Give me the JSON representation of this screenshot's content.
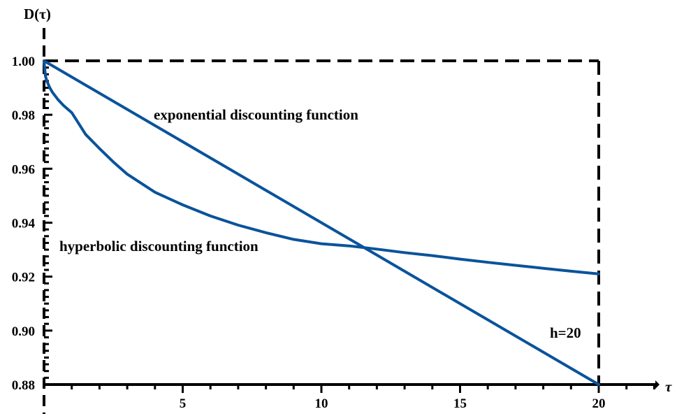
{
  "chart_data": {
    "type": "line",
    "xlabel": "τ",
    "ylabel": "D(τ)",
    "xlim": [
      0,
      22
    ],
    "ylim": [
      0.88,
      1.0
    ],
    "xticks": [
      5,
      10,
      15,
      20
    ],
    "xtick_labels": [
      "5",
      "10",
      "15",
      "20"
    ],
    "yticks": [
      0.88,
      0.9,
      0.92,
      0.94,
      0.96,
      0.98,
      1.0
    ],
    "ytick_labels": [
      "0.88",
      "0.90",
      "0.92",
      "0.94",
      "0.96",
      "0.98",
      "1.00"
    ],
    "grid": false,
    "color": "#0a539b",
    "series": [
      {
        "key": "exponential",
        "x": [
          0,
          20
        ],
        "y": [
          1.0,
          0.88
        ]
      },
      {
        "key": "hyperbolic",
        "x": [
          0,
          0.05,
          0.1,
          0.2,
          0.3,
          0.5,
          0.7,
          1,
          1.5,
          2,
          2.5,
          3,
          4,
          5,
          6,
          7,
          8,
          9,
          10,
          11,
          12,
          13,
          14,
          15,
          16,
          17,
          18,
          19,
          20
        ],
        "y": [
          1.0,
          0.9944,
          0.9926,
          0.9902,
          0.9884,
          0.9857,
          0.9835,
          0.9808,
          0.9727,
          0.9675,
          0.9625,
          0.958,
          0.9513,
          0.9466,
          0.9425,
          0.9391,
          0.9363,
          0.9338,
          0.9322,
          0.9314,
          0.9302,
          0.9289,
          0.9278,
          0.9265,
          0.9253,
          0.9242,
          0.9231,
          0.922,
          0.921
        ]
      }
    ],
    "annotations": {
      "exponential": "exponential discounting function",
      "hyperbolic": "hyperbolic discounting function",
      "horizon": "h=20"
    },
    "horizon_box": {
      "x": 20,
      "y": 1.0
    }
  }
}
